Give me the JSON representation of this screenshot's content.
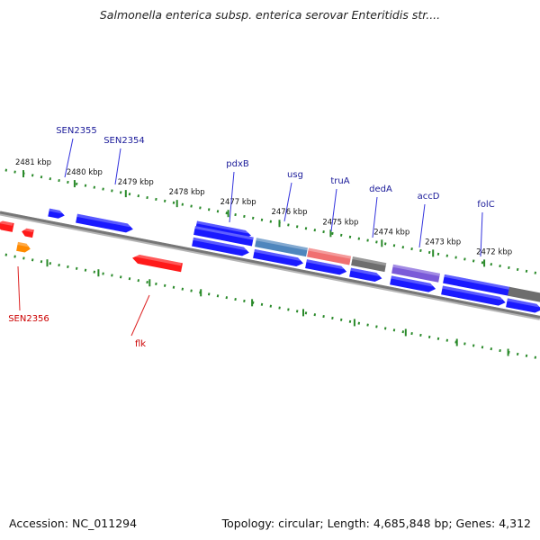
{
  "title": "Salmonella enterica subsp. enterica serovar Enteritidis str....",
  "accession_text": "Accession: NC_011294",
  "topology_text": "Topology: circular; Length: 4,685,848 bp; Genes: 4,312",
  "colors": {
    "forward": "#1a1aff",
    "reverse": "#ff1a1a",
    "forward_label": "#1a1a99",
    "reverse_label": "#cc0000",
    "tick": "#2a8a2a",
    "backbone": "#777777"
  },
  "ticks": [
    {
      "label": "2481 kbp",
      "kbp": 2481
    },
    {
      "label": "2480 kbp",
      "kbp": 2480
    },
    {
      "label": "2479 kbp",
      "kbp": 2479
    },
    {
      "label": "2478 kbp",
      "kbp": 2478
    },
    {
      "label": "2477 kbp",
      "kbp": 2477
    },
    {
      "label": "2476 kbp",
      "kbp": 2476
    },
    {
      "label": "2475 kbp",
      "kbp": 2475
    },
    {
      "label": "2474 kbp",
      "kbp": 2474
    },
    {
      "label": "2473 kbp",
      "kbp": 2473
    },
    {
      "label": "2472 kbp",
      "kbp": 2472
    }
  ],
  "gene_labels": [
    {
      "text": "SEN2355",
      "strand": "forward"
    },
    {
      "text": "SEN2354",
      "strand": "forward"
    },
    {
      "text": "pdxB",
      "strand": "forward"
    },
    {
      "text": "usg",
      "strand": "forward"
    },
    {
      "text": "truA",
      "strand": "forward"
    },
    {
      "text": "dedA",
      "strand": "forward"
    },
    {
      "text": "accD",
      "strand": "forward"
    },
    {
      "text": "folC",
      "strand": "forward"
    },
    {
      "text": "SEN2356",
      "strand": "reverse"
    },
    {
      "text": "flk",
      "strand": "reverse"
    }
  ],
  "features": [
    {
      "name": "pdxB",
      "color": "#1a1aff"
    },
    {
      "name": "usg",
      "color": "#4f86bd"
    },
    {
      "name": "truA",
      "color": "#f07070"
    },
    {
      "name": "dedA",
      "color": "#6e6e6e"
    },
    {
      "name": "accD",
      "color": "#7a5ad8"
    },
    {
      "name": "folC",
      "color": "#1a1aff"
    }
  ]
}
